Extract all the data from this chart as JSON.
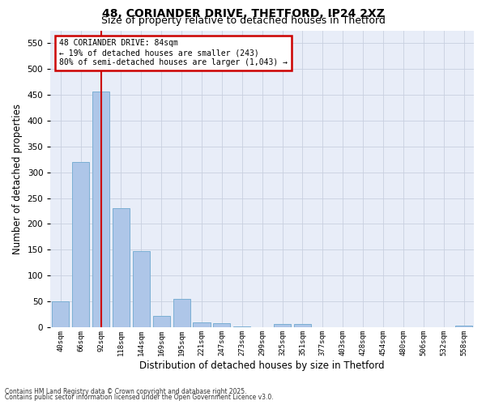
{
  "title1": "48, CORIANDER DRIVE, THETFORD, IP24 2XZ",
  "title2": "Size of property relative to detached houses in Thetford",
  "xlabel": "Distribution of detached houses by size in Thetford",
  "ylabel": "Number of detached properties",
  "categories": [
    "40sqm",
    "66sqm",
    "92sqm",
    "118sqm",
    "144sqm",
    "169sqm",
    "195sqm",
    "221sqm",
    "247sqm",
    "273sqm",
    "299sqm",
    "325sqm",
    "351sqm",
    "377sqm",
    "403sqm",
    "428sqm",
    "454sqm",
    "480sqm",
    "506sqm",
    "532sqm",
    "558sqm"
  ],
  "values": [
    50,
    320,
    457,
    230,
    148,
    22,
    55,
    10,
    8,
    1,
    0,
    6,
    6,
    0,
    0,
    0,
    0,
    0,
    0,
    0,
    3
  ],
  "bar_color": "#aec6e8",
  "bar_edge_color": "#7bafd4",
  "grid_color": "#c8d0e0",
  "bg_color": "#e8edf8",
  "vline_x_index": 2,
  "vline_color": "#cc0000",
  "annotation_text": "48 CORIANDER DRIVE: 84sqm\n← 19% of detached houses are smaller (243)\n80% of semi-detached houses are larger (1,043) →",
  "annotation_box_color": "#cc0000",
  "footer1": "Contains HM Land Registry data © Crown copyright and database right 2025.",
  "footer2": "Contains public sector information licensed under the Open Government Licence v3.0.",
  "ylim": [
    0,
    575
  ],
  "yticks": [
    0,
    50,
    100,
    150,
    200,
    250,
    300,
    350,
    400,
    450,
    500,
    550
  ],
  "title1_fontsize": 10,
  "title2_fontsize": 9,
  "bar_width": 0.85
}
